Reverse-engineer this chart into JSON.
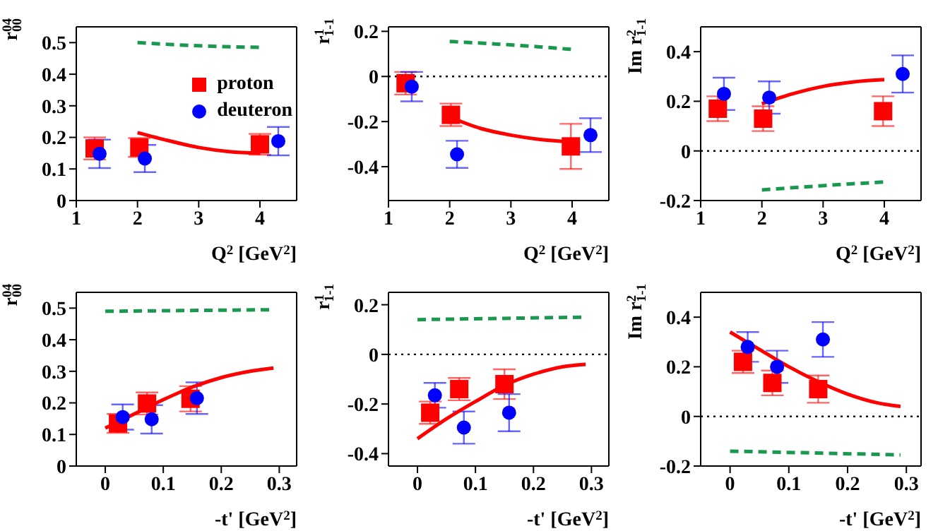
{
  "chart_data": [
    {
      "type": "scatter",
      "ylabel": "r$^{04}$$_{00}$",
      "xlabel": "Q$^{2}$ [GeV$^{2}$]",
      "xlim": [
        1,
        4.6
      ],
      "xticks": [
        1,
        2,
        3,
        4
      ],
      "ylim": [
        0,
        0.55
      ],
      "yticks": [
        0,
        0.1,
        0.2,
        0.3,
        0.4,
        0.5
      ],
      "legend": "right",
      "series": [
        {
          "name": "proton",
          "color": "#ff0000",
          "marker": "square",
          "x": [
            1.3,
            2.03,
            4.0
          ],
          "values": [
            0.165,
            0.168,
            0.178
          ],
          "errors": [
            0.035,
            0.03,
            0.033
          ]
        },
        {
          "name": "deuteron",
          "color": "#0000ff",
          "marker": "circle",
          "x": [
            1.38,
            2.12,
            4.3
          ],
          "values": [
            0.148,
            0.133,
            0.188
          ],
          "errors": [
            0.045,
            0.043,
            0.045
          ]
        },
        {
          "type": "line",
          "color": "#ff0000",
          "x": [
            2,
            2.5,
            3,
            3.5,
            4
          ],
          "values": [
            0.215,
            0.19,
            0.168,
            0.155,
            0.15
          ]
        },
        {
          "type": "line",
          "color": "#1a9850",
          "line_style": "dashed",
          "x": [
            2,
            3,
            4
          ],
          "values": [
            0.5,
            0.49,
            0.485
          ]
        }
      ]
    },
    {
      "type": "scatter",
      "ylabel": "r$^{1}$$_{1-1}$",
      "xlabel": "Q$^{2}$ [GeV$^{2}$]",
      "xlim": [
        1,
        4.6
      ],
      "xticks": [
        1,
        2,
        3,
        4
      ],
      "ylim": [
        -0.55,
        0.22
      ],
      "yticks": [
        -0.4,
        -0.2,
        0,
        0.2
      ],
      "ref_lines": [
        {
          "axis": "y",
          "value": 0,
          "line_style": "dotted",
          "color": "#000000"
        }
      ],
      "series": [
        {
          "color": "#ff0000",
          "marker": "square",
          "x": [
            1.28,
            2.02,
            3.98
          ],
          "values": [
            -0.03,
            -0.17,
            -0.31
          ],
          "errors": [
            0.05,
            0.05,
            0.1
          ]
        },
        {
          "color": "#0000ff",
          "marker": "circle",
          "x": [
            1.38,
            2.12,
            4.3
          ],
          "values": [
            -0.045,
            -0.345,
            -0.26
          ],
          "errors": [
            0.065,
            0.06,
            0.075
          ]
        },
        {
          "type": "line",
          "color": "#ff0000",
          "x": [
            2,
            2.5,
            3,
            3.5,
            4
          ],
          "values": [
            -0.18,
            -0.23,
            -0.26,
            -0.28,
            -0.29
          ]
        },
        {
          "type": "line",
          "color": "#1a9850",
          "line_style": "dashed",
          "x": [
            2,
            3,
            4
          ],
          "values": [
            0.155,
            0.14,
            0.12
          ]
        }
      ]
    },
    {
      "type": "scatter",
      "ylabel": "Im r$^{2}$$_{1-1}$",
      "xlabel": "Q$^{2}$ [GeV$^{2}$]",
      "xlim": [
        1,
        4.6
      ],
      "xticks": [
        1,
        2,
        3,
        4
      ],
      "ylim": [
        -0.2,
        0.5
      ],
      "yticks": [
        -0.2,
        0,
        0.2,
        0.4
      ],
      "ref_lines": [
        {
          "axis": "y",
          "value": 0,
          "line_style": "dotted",
          "color": "#000000"
        }
      ],
      "series": [
        {
          "color": "#ff0000",
          "marker": "square",
          "x": [
            1.28,
            2.02,
            3.98
          ],
          "values": [
            0.17,
            0.13,
            0.16
          ],
          "errors": [
            0.05,
            0.05,
            0.06
          ]
        },
        {
          "color": "#0000ff",
          "marker": "circle",
          "x": [
            1.38,
            2.12,
            4.3
          ],
          "values": [
            0.23,
            0.215,
            0.31
          ],
          "errors": [
            0.065,
            0.065,
            0.075
          ]
        },
        {
          "type": "line",
          "color": "#ff0000",
          "x": [
            2,
            2.5,
            3,
            3.5,
            4
          ],
          "values": [
            0.19,
            0.23,
            0.26,
            0.278,
            0.287
          ]
        },
        {
          "type": "line",
          "color": "#1a9850",
          "line_style": "dashed",
          "x": [
            2,
            3,
            4
          ],
          "values": [
            -0.157,
            -0.14,
            -0.125
          ]
        }
      ]
    },
    {
      "type": "scatter",
      "ylabel": "r$^{04}$$_{00}$",
      "xlabel": "-t' [GeV$^{2}$]",
      "xlim": [
        -0.05,
        0.33
      ],
      "xticks": [
        0,
        0.1,
        0.2,
        0.3
      ],
      "ylim": [
        0,
        0.55
      ],
      "yticks": [
        0,
        0.1,
        0.2,
        0.3,
        0.4,
        0.5
      ],
      "series": [
        {
          "color": "#ff0000",
          "marker": "square",
          "x": [
            0.022,
            0.072,
            0.147
          ],
          "values": [
            0.135,
            0.198,
            0.213
          ],
          "errors": [
            0.03,
            0.035,
            0.04
          ]
        },
        {
          "color": "#0000ff",
          "marker": "circle",
          "x": [
            0.03,
            0.08,
            0.158
          ],
          "values": [
            0.155,
            0.148,
            0.215
          ],
          "errors": [
            0.04,
            0.045,
            0.05
          ]
        },
        {
          "type": "line",
          "color": "#ff0000",
          "x": [
            0,
            0.05,
            0.1,
            0.15,
            0.2,
            0.25,
            0.29
          ],
          "values": [
            0.12,
            0.165,
            0.21,
            0.25,
            0.28,
            0.3,
            0.31
          ]
        },
        {
          "type": "line",
          "color": "#1a9850",
          "line_style": "dashed",
          "x": [
            0,
            0.29
          ],
          "values": [
            0.49,
            0.495
          ]
        }
      ]
    },
    {
      "type": "scatter",
      "ylabel": "r$^{1}$$_{1-1}$",
      "xlabel": "-t' [GeV$^{2}$]",
      "xlim": [
        -0.05,
        0.33
      ],
      "xticks": [
        0,
        0.1,
        0.2,
        0.3
      ],
      "ylim": [
        -0.45,
        0.25
      ],
      "yticks": [
        -0.4,
        -0.2,
        0,
        0.2
      ],
      "ref_lines": [
        {
          "axis": "y",
          "value": 0,
          "line_style": "dotted",
          "color": "#000000"
        }
      ],
      "series": [
        {
          "color": "#ff0000",
          "marker": "square",
          "x": [
            0.022,
            0.072,
            0.15
          ],
          "values": [
            -0.235,
            -0.14,
            -0.12
          ],
          "errors": [
            0.045,
            0.045,
            0.06
          ]
        },
        {
          "color": "#0000ff",
          "marker": "circle",
          "x": [
            0.03,
            0.08,
            0.158
          ],
          "values": [
            -0.165,
            -0.295,
            -0.235
          ],
          "errors": [
            0.05,
            0.065,
            0.075
          ]
        },
        {
          "type": "line",
          "color": "#ff0000",
          "x": [
            0,
            0.05,
            0.1,
            0.15,
            0.2,
            0.25,
            0.29
          ],
          "values": [
            -0.34,
            -0.26,
            -0.19,
            -0.125,
            -0.08,
            -0.05,
            -0.04
          ]
        },
        {
          "type": "line",
          "color": "#1a9850",
          "line_style": "dashed",
          "x": [
            0,
            0.29
          ],
          "values": [
            0.14,
            0.15
          ]
        }
      ]
    },
    {
      "type": "scatter",
      "ylabel": "Im r$^{2}$$_{1-1}$",
      "xlabel": "-t' [GeV$^{2}$]",
      "xlim": [
        -0.05,
        0.325
      ],
      "xticks": [
        0,
        0.1,
        0.2,
        0.3
      ],
      "ylim": [
        -0.2,
        0.5
      ],
      "yticks": [
        -0.2,
        0,
        0.2,
        0.4
      ],
      "ref_lines": [
        {
          "axis": "y",
          "value": 0,
          "line_style": "dotted",
          "color": "#000000"
        }
      ],
      "series": [
        {
          "color": "#ff0000",
          "marker": "square",
          "x": [
            0.022,
            0.072,
            0.15
          ],
          "values": [
            0.22,
            0.135,
            0.11
          ],
          "errors": [
            0.045,
            0.05,
            0.055
          ]
        },
        {
          "color": "#0000ff",
          "marker": "circle",
          "x": [
            0.03,
            0.08,
            0.158
          ],
          "values": [
            0.28,
            0.2,
            0.31
          ],
          "errors": [
            0.06,
            0.065,
            0.07
          ]
        },
        {
          "type": "line",
          "color": "#ff0000",
          "x": [
            0,
            0.05,
            0.1,
            0.15,
            0.2,
            0.25,
            0.29
          ],
          "values": [
            0.34,
            0.27,
            0.2,
            0.14,
            0.09,
            0.055,
            0.04
          ]
        },
        {
          "type": "line",
          "color": "#1a9850",
          "line_style": "dashed",
          "x": [
            0,
            0.29
          ],
          "values": [
            -0.14,
            -0.155
          ]
        }
      ]
    }
  ]
}
